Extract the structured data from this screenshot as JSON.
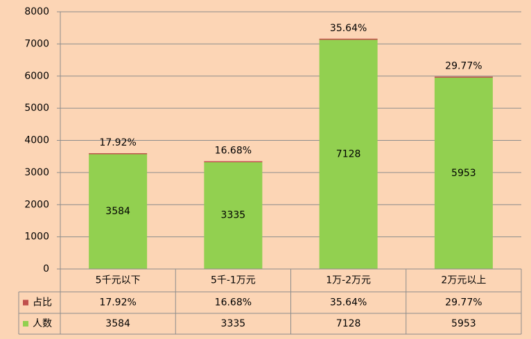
{
  "chart_data": {
    "type": "bar",
    "stacked": true,
    "categories": [
      "5千元以下",
      "5千-1万元",
      "1万-2万元",
      "2万元以上"
    ],
    "series": [
      {
        "name": "占比",
        "values": [
          "17.92%",
          "16.68%",
          "35.64%",
          "29.77%"
        ],
        "color": "#c0504d"
      },
      {
        "name": "人数",
        "values": [
          3584,
          3335,
          7128,
          5953
        ],
        "color": "#92d050"
      }
    ],
    "share_series_numeric": [
      17.92,
      16.68,
      35.64,
      29.77
    ],
    "y_ticks": [
      "0",
      "1000",
      "2000",
      "3000",
      "4000",
      "5000",
      "6000",
      "7000",
      "8000"
    ],
    "ylim": [
      0,
      8000
    ],
    "grid": true,
    "legend": "data-table-left",
    "title": "",
    "xlabel": "",
    "ylabel": ""
  }
}
